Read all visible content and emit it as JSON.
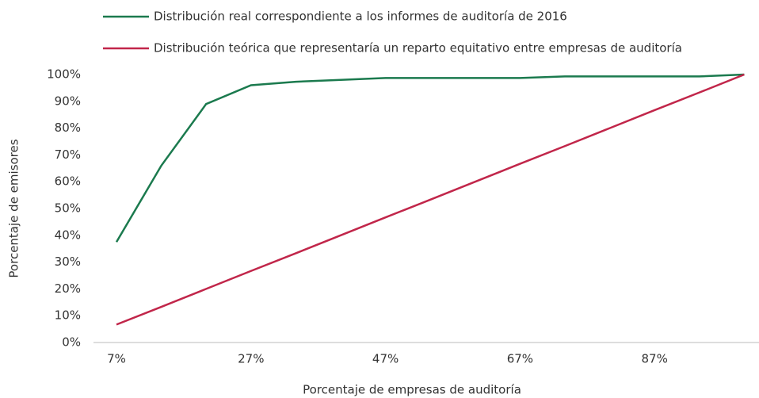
{
  "chart_data": {
    "type": "line",
    "x_label": "Porcentaje de empresas de auditoría",
    "y_label": "Porcentaje de emisores",
    "categories": [
      "7%",
      null,
      null,
      "27%",
      null,
      null,
      "47%",
      null,
      null,
      "67%",
      null,
      null,
      "87%",
      null,
      null
    ],
    "series": [
      {
        "name": "Distribución real correspondiente a los informes de auditoría de 2016",
        "color": "#1b7a4e",
        "values": [
          37.5,
          66,
          89,
          96,
          97.3,
          98,
          98.7,
          98.7,
          98.7,
          98.7,
          99.3,
          99.3,
          99.3,
          99.3,
          100
        ]
      },
      {
        "name": "Distribución teórica que representaría un reparto equitativo entre empresas de auditoría",
        "color": "#c1264a",
        "values": [
          6.7,
          13.3,
          20,
          26.7,
          33.3,
          40,
          46.7,
          53.3,
          60,
          66.7,
          73.3,
          80,
          86.7,
          93.3,
          100
        ]
      }
    ],
    "ylim": [
      0,
      100
    ],
    "yticks": [
      {
        "value": 0,
        "label": "0%"
      },
      {
        "value": 10,
        "label": "10%"
      },
      {
        "value": 20,
        "label": "20%"
      },
      {
        "value": 30,
        "label": "30%"
      },
      {
        "value": 40,
        "label": "40%"
      },
      {
        "value": 50,
        "label": "50%"
      },
      {
        "value": 60,
        "label": "60%"
      },
      {
        "value": 70,
        "label": "70%"
      },
      {
        "value": 80,
        "label": "80%"
      },
      {
        "value": 90,
        "label": "90%"
      },
      {
        "value": 100,
        "label": "100%"
      }
    ],
    "legend": "top"
  }
}
